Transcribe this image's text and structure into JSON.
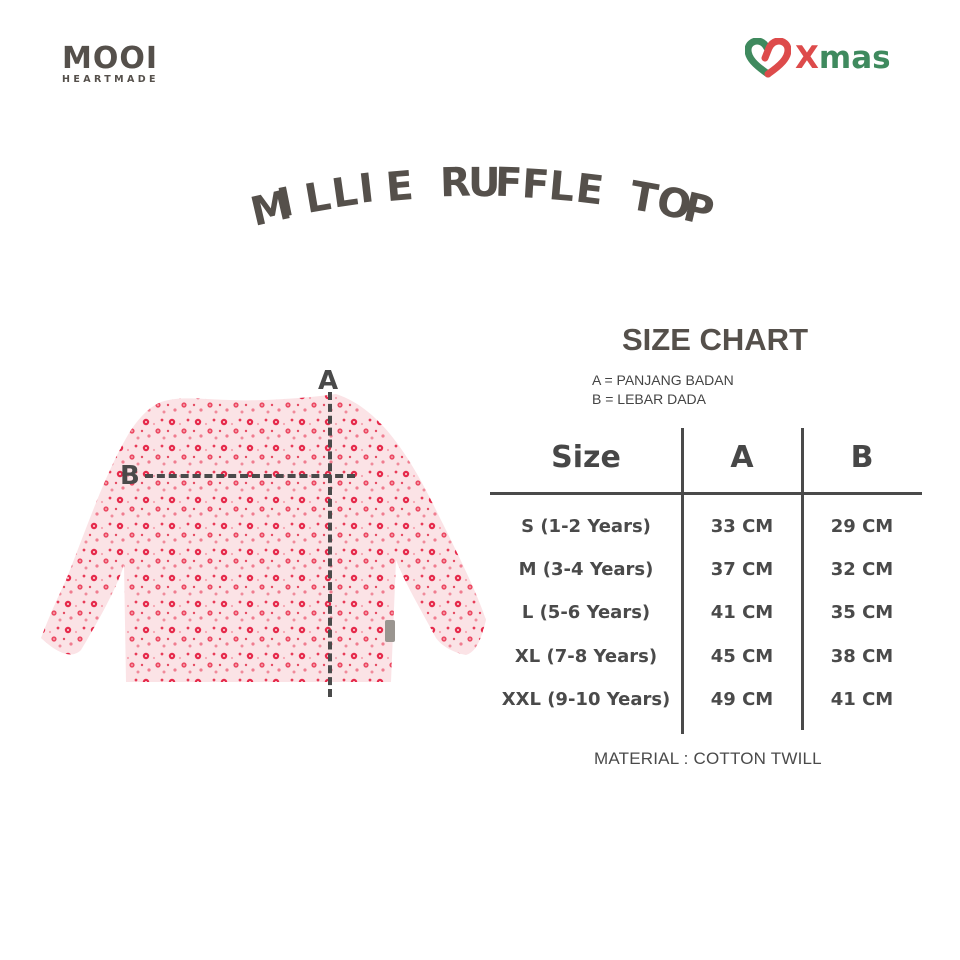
{
  "brand": {
    "name": "MOOI",
    "tagline": "HEARTMADE"
  },
  "campaign": {
    "x": "X",
    "rest": "mas",
    "colors": {
      "red": "#dd4b4b",
      "green": "#3f8a5e"
    }
  },
  "product": {
    "title": "MILLIE RUFFLE TOP"
  },
  "diagram": {
    "label_a": "A",
    "label_b": "B"
  },
  "size_chart": {
    "title": "SIZE CHART",
    "legend": [
      "A = PANJANG BADAN",
      "B = LEBAR DADA"
    ],
    "headers": [
      "Size",
      "A",
      "B"
    ],
    "rows": [
      [
        "S (1-2 Years)",
        "33 CM",
        "29 CM"
      ],
      [
        "M (3-4 Years)",
        "37 CM",
        "32 CM"
      ],
      [
        "L (5-6 Years)",
        "41 CM",
        "35 CM"
      ],
      [
        "XL (7-8 Years)",
        "45 CM",
        "38 CM"
      ],
      [
        "XXL (9-10 Years)",
        "49 CM",
        "41 CM"
      ]
    ],
    "material": "MATERIAL : COTTON TWILL"
  },
  "chart_data": {
    "type": "table",
    "title": "SIZE CHART",
    "columns": [
      "Size",
      "A",
      "B"
    ],
    "column_meaning": {
      "A": "PANJANG BADAN (body length)",
      "B": "LEBAR DADA (chest width)"
    },
    "unit": "CM",
    "categories": [
      "S (1-2 Years)",
      "M (3-4 Years)",
      "L (5-6 Years)",
      "XL (7-8 Years)",
      "XXL (9-10 Years)"
    ],
    "series": [
      {
        "name": "A",
        "values": [
          33,
          37,
          41,
          45,
          49
        ]
      },
      {
        "name": "B",
        "values": [
          29,
          32,
          35,
          38,
          41
        ]
      }
    ]
  }
}
